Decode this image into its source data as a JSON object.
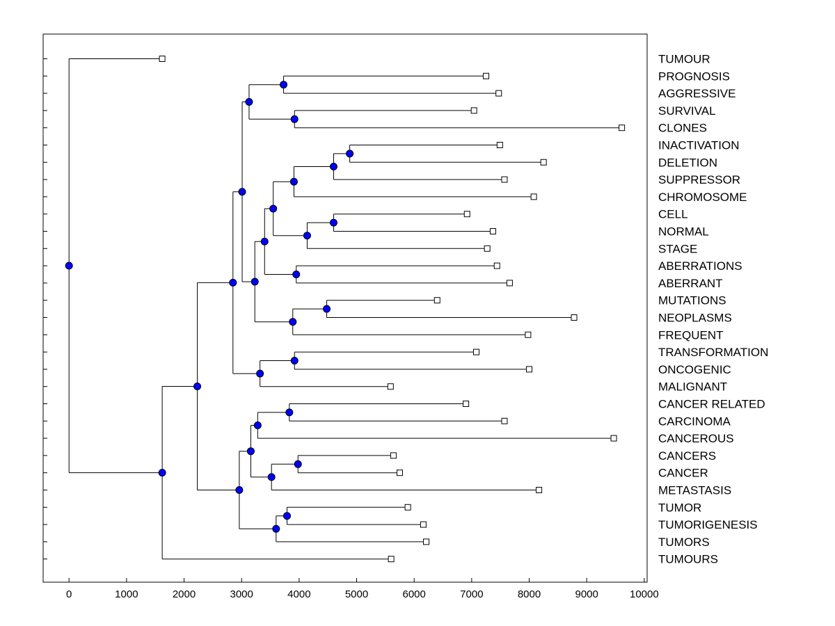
{
  "chart_data": {
    "type": "dendrogram",
    "title": "",
    "xlabel": "",
    "ylabel": "",
    "xlim": [
      -450,
      10050
    ],
    "x_ticks": [
      0,
      1000,
      2000,
      3000,
      4000,
      5000,
      6000,
      7000,
      8000,
      9000,
      10000
    ],
    "colors": {
      "node": "#0000ff",
      "leaf": "#ffffff",
      "line": "#000000"
    },
    "leaves": [
      {
        "label": "TUMOUR",
        "value": 1620
      },
      {
        "label": "PROGNOSIS",
        "value": 7250
      },
      {
        "label": "AGGRESSIVE",
        "value": 7470
      },
      {
        "label": "SURVIVAL",
        "value": 7040
      },
      {
        "label": "CLONES",
        "value": 9610
      },
      {
        "label": "INACTIVATION",
        "value": 7490
      },
      {
        "label": "DELETION",
        "value": 8250
      },
      {
        "label": "SUPPRESSOR",
        "value": 7570
      },
      {
        "label": "CHROMOSOME",
        "value": 8080
      },
      {
        "label": "CELL",
        "value": 6920
      },
      {
        "label": "NORMAL",
        "value": 7370
      },
      {
        "label": "STAGE",
        "value": 7270
      },
      {
        "label": "ABERRATIONS",
        "value": 7440
      },
      {
        "label": "ABERRANT",
        "value": 7660
      },
      {
        "label": "MUTATIONS",
        "value": 6400
      },
      {
        "label": "NEOPLASMS",
        "value": 8780
      },
      {
        "label": "FREQUENT",
        "value": 7980
      },
      {
        "label": "TRANSFORMATION",
        "value": 7080
      },
      {
        "label": "ONCOGENIC",
        "value": 8000
      },
      {
        "label": "MALIGNANT",
        "value": 5590
      },
      {
        "label": "CANCER RELATED",
        "value": 6900
      },
      {
        "label": "CARCINOMA",
        "value": 7570
      },
      {
        "label": "CANCEROUS",
        "value": 9470
      },
      {
        "label": "CANCERS",
        "value": 5640
      },
      {
        "label": "CANCER",
        "value": 5750
      },
      {
        "label": "METASTASIS",
        "value": 8170
      },
      {
        "label": "TUMOR",
        "value": 5890
      },
      {
        "label": "TUMORIGENESIS",
        "value": 6160
      },
      {
        "label": "TUMORS",
        "value": 6210
      },
      {
        "label": "TUMOURS",
        "value": 5600
      }
    ],
    "merges": [
      {
        "id": "n1",
        "value": 3730,
        "children": [
          "PROGNOSIS",
          "AGGRESSIVE"
        ]
      },
      {
        "id": "n2",
        "value": 3920,
        "children": [
          "SURVIVAL",
          "CLONES"
        ]
      },
      {
        "id": "n3",
        "value": 3130,
        "children": [
          "n1",
          "n2"
        ]
      },
      {
        "id": "n4",
        "value": 4880,
        "children": [
          "INACTIVATION",
          "DELETION"
        ]
      },
      {
        "id": "n5",
        "value": 4600,
        "children": [
          "n4",
          "SUPPRESSOR"
        ]
      },
      {
        "id": "n6",
        "value": 3910,
        "children": [
          "n5",
          "CHROMOSOME"
        ]
      },
      {
        "id": "n7",
        "value": 4600,
        "children": [
          "CELL",
          "NORMAL"
        ]
      },
      {
        "id": "n8",
        "value": 4140,
        "children": [
          "n7",
          "STAGE"
        ]
      },
      {
        "id": "n9",
        "value": 3550,
        "children": [
          "n6",
          "n8"
        ]
      },
      {
        "id": "n10",
        "value": 3950,
        "children": [
          "ABERRATIONS",
          "ABERRANT"
        ]
      },
      {
        "id": "n11",
        "value": 3400,
        "children": [
          "n9",
          "n10"
        ]
      },
      {
        "id": "n12",
        "value": 4480,
        "children": [
          "MUTATIONS",
          "NEOPLASMS"
        ]
      },
      {
        "id": "n13",
        "value": 3890,
        "children": [
          "n12",
          "FREQUENT"
        ]
      },
      {
        "id": "n14",
        "value": 3230,
        "children": [
          "n11",
          "n13"
        ]
      },
      {
        "id": "n15",
        "value": 3010,
        "children": [
          "n3",
          "n14"
        ]
      },
      {
        "id": "n16",
        "value": 3920,
        "children": [
          "TRANSFORMATION",
          "ONCOGENIC"
        ]
      },
      {
        "id": "n17",
        "value": 3320,
        "children": [
          "n16",
          "MALIGNANT"
        ]
      },
      {
        "id": "n18",
        "value": 2850,
        "children": [
          "n15",
          "n17"
        ]
      },
      {
        "id": "n19",
        "value": 3830,
        "children": [
          "CANCER RELATED",
          "CARCINOMA"
        ]
      },
      {
        "id": "n20",
        "value": 3280,
        "children": [
          "n19",
          "CANCEROUS"
        ]
      },
      {
        "id": "n21",
        "value": 3980,
        "children": [
          "CANCERS",
          "CANCER"
        ]
      },
      {
        "id": "n22",
        "value": 3520,
        "children": [
          "n21",
          "METASTASIS"
        ]
      },
      {
        "id": "n23",
        "value": 3160,
        "children": [
          "n20",
          "n22"
        ]
      },
      {
        "id": "n24",
        "value": 3790,
        "children": [
          "TUMOR",
          "TUMORIGENESIS"
        ]
      },
      {
        "id": "n25",
        "value": 3600,
        "children": [
          "n24",
          "TUMORS"
        ]
      },
      {
        "id": "n26",
        "value": 2960,
        "children": [
          "n23",
          "n25"
        ]
      },
      {
        "id": "n27",
        "value": 2230,
        "children": [
          "n18",
          "n26"
        ]
      },
      {
        "id": "n28",
        "value": 1620,
        "children": [
          "n27",
          "TUMOURS"
        ]
      },
      {
        "id": "n29",
        "value": 0,
        "children": [
          "TUMOUR",
          "n28"
        ]
      }
    ]
  }
}
